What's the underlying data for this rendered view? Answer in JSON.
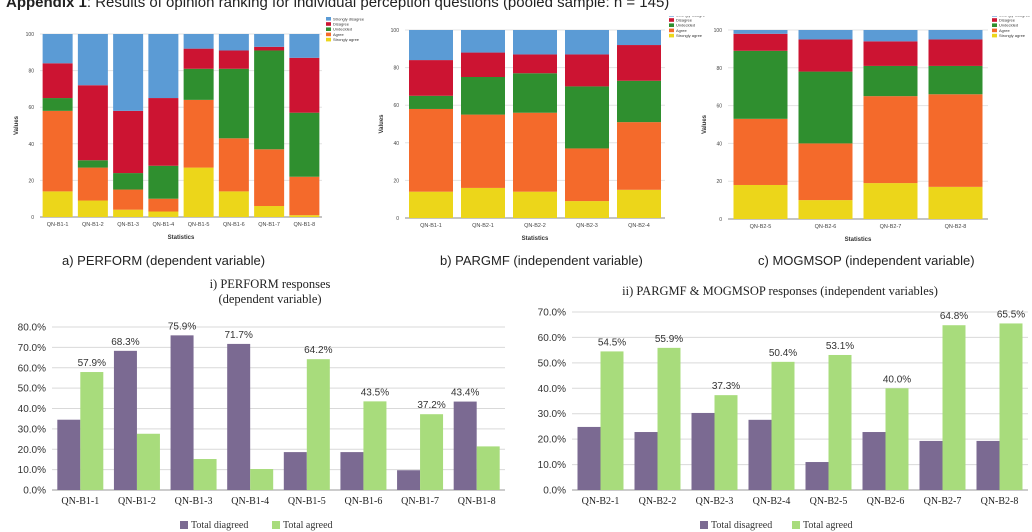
{
  "header": {
    "prefix": "Appendix 1",
    "rest": ": Results of opinion ranking for individual perception questions (pooled sample: n = 145)"
  },
  "captions": {
    "a": "a) PERFORM (dependent variable)",
    "b": "b) PARGMF (independent variable)",
    "c": "c) MOGMSOP (independent variable)"
  },
  "colors": {
    "Strongly disagree": "#5b9bd5",
    "Disagree": "#cc1432",
    "Undecided": "#2f8f2f",
    "Agree": "#f46a2b",
    "Strongly agree": "#ecd61a",
    "disagreed": "#7b6a92",
    "agreed": "#a8dc7c"
  },
  "chart_data": [
    {
      "type": "bar",
      "stacked": true,
      "categories": [
        "QN-B1-1",
        "QN-B1-2",
        "QN-B1-3",
        "QN-B1-4",
        "QN-B1-5",
        "QN-B1-6",
        "QN-B1-7",
        "QN-B1-8"
      ],
      "series": [
        {
          "name": "Strongly agree",
          "values": [
            14,
            9,
            4,
            3,
            27,
            14,
            6,
            1
          ]
        },
        {
          "name": "Agree",
          "values": [
            44,
            18,
            11,
            7,
            37,
            29,
            31,
            21
          ]
        },
        {
          "name": "Undecided",
          "values": [
            7,
            4,
            9,
            18,
            17,
            38,
            54,
            35
          ]
        },
        {
          "name": "Disagree",
          "values": [
            19,
            41,
            34,
            37,
            11,
            10,
            2,
            30
          ]
        },
        {
          "name": "Strongly disagree",
          "values": [
            16,
            28,
            42,
            35,
            8,
            9,
            7,
            13
          ]
        }
      ],
      "legend_title": "Row",
      "legend_order": [
        "Strongly disagree",
        "Disagree",
        "Undecided",
        "Agree",
        "Strongly agree"
      ],
      "xlabel": "Statistics",
      "ylabel": "Values",
      "ylim": [
        0,
        100
      ],
      "yticks": [
        0,
        20,
        40,
        60,
        80,
        100
      ],
      "legend": "top-right"
    },
    {
      "type": "bar",
      "stacked": true,
      "categories": [
        "QN-B1-1",
        "QN-B2-1",
        "QN-B2-2",
        "QN-B2-3",
        "QN-B2-4"
      ],
      "series": [
        {
          "name": "Strongly agree",
          "values": [
            14,
            16,
            14,
            9,
            15
          ]
        },
        {
          "name": "Agree",
          "values": [
            44,
            39,
            42,
            28,
            36
          ]
        },
        {
          "name": "Undecided",
          "values": [
            7,
            20,
            21,
            33,
            22
          ]
        },
        {
          "name": "Disagree",
          "values": [
            19,
            13,
            10,
            17,
            19
          ]
        },
        {
          "name": "Strongly disagree",
          "values": [
            16,
            12,
            13,
            13,
            8
          ]
        }
      ],
      "legend_title": "Row",
      "legend_order": [
        "Strongly disagree",
        "Disagree",
        "Undecided",
        "Agree",
        "Strongly agree"
      ],
      "xlabel": "Statistics",
      "ylabel": "Values",
      "ylim": [
        0,
        100
      ],
      "yticks": [
        0,
        20,
        40,
        60,
        80,
        100
      ],
      "legend": "top-right"
    },
    {
      "type": "bar",
      "stacked": true,
      "categories": [
        "QN-B2-5",
        "QN-B2-6",
        "QN-B2-7",
        "QN-B2-8"
      ],
      "series": [
        {
          "name": "Strongly agree",
          "values": [
            18,
            10,
            19,
            17
          ]
        },
        {
          "name": "Agree",
          "values": [
            35,
            30,
            46,
            49
          ]
        },
        {
          "name": "Undecided",
          "values": [
            36,
            38,
            16,
            15
          ]
        },
        {
          "name": "Disagree",
          "values": [
            9,
            17,
            13,
            14
          ]
        },
        {
          "name": "Strongly disagree",
          "values": [
            2,
            5,
            6,
            5
          ]
        }
      ],
      "legend_title": "Row",
      "legend_order": [
        "Strongly disagree",
        "Disagree",
        "Undecided",
        "Agree",
        "Strongly agree"
      ],
      "xlabel": "Statistics",
      "ylabel": "Values",
      "ylim": [
        0,
        100
      ],
      "yticks": [
        0,
        20,
        40,
        60,
        80,
        100
      ],
      "legend": "top-right"
    },
    {
      "type": "bar",
      "title": "i) PERFORM responses\n(dependent variable)",
      "categories": [
        "QN-B1-1",
        "QN-B1-2",
        "QN-B1-3",
        "QN-B1-4",
        "QN-B1-5",
        "QN-B1-6",
        "QN-B1-7",
        "QN-B1-8"
      ],
      "series": [
        {
          "name": "Total diagreed",
          "values": [
            34.5,
            68.3,
            75.9,
            71.7,
            18.6,
            18.6,
            9.7,
            43.4
          ]
        },
        {
          "name": "Total agreed",
          "values": [
            57.9,
            27.6,
            15.2,
            10.3,
            64.2,
            43.5,
            37.2,
            21.4
          ]
        }
      ],
      "data_labels": [
        "57.9%",
        "68.3%",
        "75.9%",
        "71.7%",
        "64.2%",
        "43.5%",
        "37.2%",
        "43.4%"
      ],
      "ylim": [
        0,
        80
      ],
      "yticks": [
        "0.0%",
        "10.0%",
        "20.0%",
        "30.0%",
        "40.0%",
        "50.0%",
        "60.0%",
        "70.0%",
        "80.0%"
      ],
      "legend": "bottom"
    },
    {
      "type": "bar",
      "title": "ii) PARGMF & MOGMSOP responses (independent variables)",
      "categories": [
        "QN-B2-1",
        "QN-B2-2",
        "QN-B2-3",
        "QN-B2-4",
        "QN-B2-5",
        "QN-B2-6",
        "QN-B2-7",
        "QN-B2-8"
      ],
      "series": [
        {
          "name": "Total disagreed",
          "values": [
            24.8,
            22.8,
            30.3,
            27.6,
            11.0,
            22.8,
            19.3,
            19.3
          ]
        },
        {
          "name": "Total agreed",
          "values": [
            54.5,
            55.9,
            37.3,
            50.4,
            53.1,
            40.0,
            64.8,
            65.5
          ]
        }
      ],
      "data_labels": [
        "54.5%",
        "55.9%",
        "37.3%",
        "50.4%",
        "53.1%",
        "40.0%",
        "64.8%",
        "65.5%"
      ],
      "ylim": [
        0,
        70
      ],
      "yticks": [
        "0.0%",
        "10.0%",
        "20.0%",
        "30.0%",
        "40.0%",
        "50.0%",
        "60.0%",
        "70.0%"
      ],
      "legend": "bottom"
    }
  ]
}
